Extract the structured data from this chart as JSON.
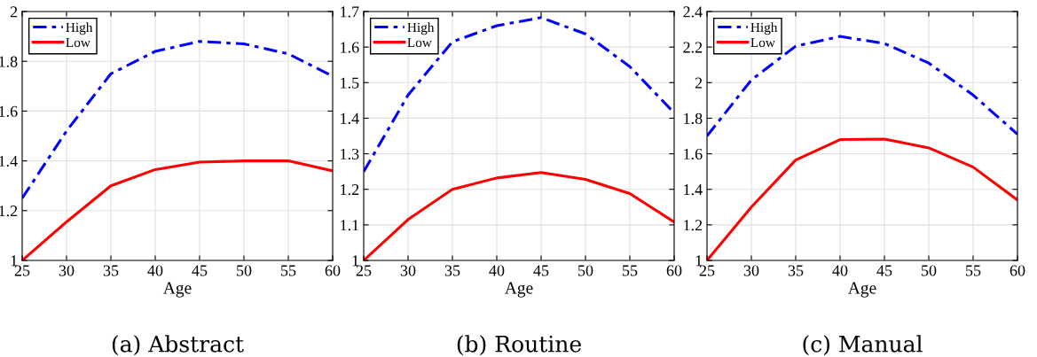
{
  "chart_data": [
    {
      "type": "line",
      "title": "(a) Abstract",
      "xlabel": "Age",
      "x": [
        25,
        30,
        35,
        40,
        45,
        50,
        55,
        60
      ],
      "xlim": [
        25,
        60
      ],
      "xticks": [
        25,
        30,
        35,
        40,
        45,
        50,
        55,
        60
      ],
      "ylim": [
        1,
        2
      ],
      "yticks": [
        1,
        {
          "value": 1.2,
          "label": "1.2"
        },
        {
          "value": 1.4,
          "label": "1.4"
        },
        {
          "value": 1.6,
          "label": "1.6"
        },
        {
          "value": 1.8,
          "label": "1.8"
        },
        2
      ],
      "grid": true,
      "legend": "top left",
      "series": [
        {
          "name": "High",
          "color": "#0000ff",
          "line_style": "dashed",
          "values": [
            1.25,
            1.52,
            1.75,
            1.84,
            1.88,
            1.87,
            1.83,
            1.74
          ]
        },
        {
          "name": "Low",
          "color": "#ff0000",
          "line_style": "solid",
          "values": [
            1.0,
            1.155,
            1.3,
            1.365,
            1.395,
            1.4,
            1.4,
            1.36
          ]
        }
      ]
    },
    {
      "type": "line",
      "title": "(b) Routine",
      "xlabel": "Age",
      "x": [
        25,
        30,
        35,
        40,
        45,
        50,
        55,
        60
      ],
      "xlim": [
        25,
        60
      ],
      "xticks": [
        25,
        30,
        35,
        40,
        45,
        50,
        55,
        60
      ],
      "ylim": [
        1,
        1.7
      ],
      "yticks": [
        1,
        1.1,
        1.2,
        1.3,
        1.4,
        1.5,
        1.6,
        1.7
      ],
      "grid": true,
      "legend": "top left",
      "series": [
        {
          "name": "High",
          "color": "#0000ff",
          "line_style": "dashed",
          "values": [
            1.25,
            1.465,
            1.615,
            1.66,
            1.683,
            1.637,
            1.545,
            1.415
          ]
        },
        {
          "name": "Low",
          "color": "#ff0000",
          "line_style": "solid",
          "values": [
            1.0,
            1.115,
            1.2,
            1.232,
            1.247,
            1.228,
            1.188,
            1.108
          ]
        }
      ]
    },
    {
      "type": "line",
      "title": "(c) Manual",
      "xlabel": "Age",
      "x": [
        25,
        30,
        35,
        40,
        45,
        50,
        55,
        60
      ],
      "xlim": [
        25,
        60
      ],
      "xticks": [
        25,
        30,
        35,
        40,
        45,
        50,
        55,
        60
      ],
      "ylim": [
        1,
        2.4
      ],
      "yticks": [
        1,
        1.2,
        1.4,
        1.6,
        1.8,
        2,
        2.2,
        2.4
      ],
      "grid": true,
      "legend": "top left",
      "series": [
        {
          "name": "High",
          "color": "#0000ff",
          "line_style": "dashed",
          "values": [
            1.7,
            2.015,
            2.205,
            2.26,
            2.22,
            2.11,
            1.93,
            1.71
          ]
        },
        {
          "name": "Low",
          "color": "#ff0000",
          "line_style": "solid",
          "values": [
            1.0,
            1.3,
            1.565,
            1.68,
            1.683,
            1.633,
            1.525,
            1.34
          ]
        }
      ]
    }
  ]
}
